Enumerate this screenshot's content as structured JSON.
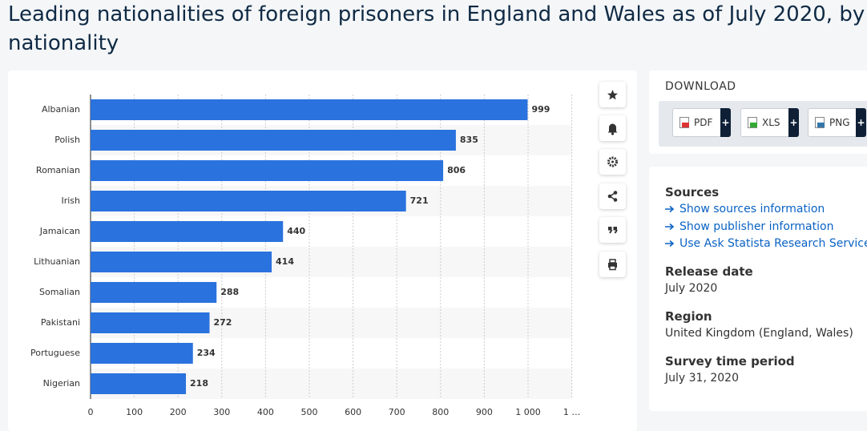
{
  "header": {
    "title": "Leading nationalities of foreign prisoners in England and Wales as of July 2020, by nationality"
  },
  "chart_data": {
    "type": "bar",
    "orientation": "horizontal",
    "categories": [
      "Albanian",
      "Polish",
      "Romanian",
      "Irish",
      "Jamaican",
      "Lithuanian",
      "Somalian",
      "Pakistani",
      "Portuguese",
      "Nigerian"
    ],
    "values": [
      999,
      835,
      806,
      721,
      440,
      414,
      288,
      272,
      234,
      218
    ],
    "color": "#2a72de",
    "xlim": [
      0,
      1100
    ],
    "xticks": [
      0,
      100,
      200,
      300,
      400,
      500,
      600,
      700,
      800,
      900,
      {
        "value": 1000,
        "label": "1 000"
      },
      {
        "value": 1100,
        "label": "1 …"
      }
    ],
    "grid": true
  },
  "download": {
    "heading": "DOWNLOAD",
    "buttons": [
      {
        "label": "PDF",
        "action": "+"
      },
      {
        "label": "XLS",
        "action": "+"
      },
      {
        "label": "PNG",
        "action": "+"
      }
    ]
  },
  "sources": {
    "heading": "Sources",
    "links": [
      "Show sources information",
      "Show publisher information",
      "Use Ask Statista Research Service"
    ]
  },
  "details": [
    {
      "heading": "Release date",
      "text": "July 2020"
    },
    {
      "heading": "Region",
      "text": "United Kingdom (England, Wales)"
    },
    {
      "heading": "Survey time period",
      "text": "July 31, 2020"
    }
  ]
}
